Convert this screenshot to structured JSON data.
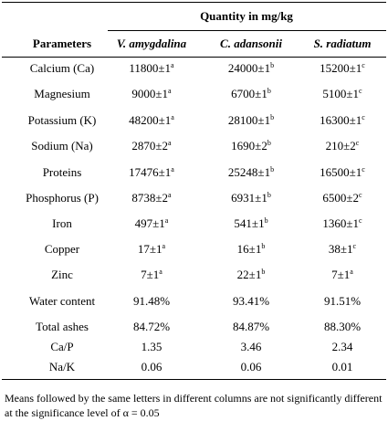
{
  "table": {
    "group_header": "Quantity in mg/kg",
    "columns": [
      "Parameters",
      "V. amygdalina",
      "C. adansonii",
      "S. radiatum"
    ],
    "rows": [
      {
        "parameter": "Calcium (Ca)",
        "cells": [
          {
            "value": "11800±1",
            "sup": "a"
          },
          {
            "value": "24000±1",
            "sup": "b"
          },
          {
            "value": "15200±1",
            "sup": "c"
          }
        ]
      },
      {
        "parameter": "Magnesium",
        "cells": [
          {
            "value": "9000±1",
            "sup": "a"
          },
          {
            "value": "6700±1",
            "sup": "b"
          },
          {
            "value": "5100±1",
            "sup": "c"
          }
        ]
      },
      {
        "parameter": "Potassium (K)",
        "cells": [
          {
            "value": "48200±1",
            "sup": "a"
          },
          {
            "value": "28100±1",
            "sup": "b"
          },
          {
            "value": "16300±1",
            "sup": "c"
          }
        ]
      },
      {
        "parameter": "Sodium (Na)",
        "cells": [
          {
            "value": "2870±2",
            "sup": "a"
          },
          {
            "value": "1690±2",
            "sup": "b"
          },
          {
            "value": "210±2",
            "sup": "c"
          }
        ]
      },
      {
        "parameter": "Proteins",
        "cells": [
          {
            "value": "17476±1",
            "sup": "a"
          },
          {
            "value": "25248±1",
            "sup": "b"
          },
          {
            "value": "16500±1",
            "sup": "c"
          }
        ]
      },
      {
        "parameter": "Phosphorus (P)",
        "cells": [
          {
            "value": "8738±2",
            "sup": "a"
          },
          {
            "value": "6931±1",
            "sup": "b"
          },
          {
            "value": "6500±2",
            "sup": "c"
          }
        ]
      },
      {
        "parameter": "Iron",
        "cells": [
          {
            "value": "497±1",
            "sup": "a"
          },
          {
            "value": "541±1",
            "sup": "b"
          },
          {
            "value": "1360±1",
            "sup": "c"
          }
        ]
      },
      {
        "parameter": "Copper",
        "cells": [
          {
            "value": "17±1",
            "sup": "a"
          },
          {
            "value": "16±1",
            "sup": "b"
          },
          {
            "value": "38±1",
            "sup": "c"
          }
        ]
      },
      {
        "parameter": "Zinc",
        "cells": [
          {
            "value": "7±1",
            "sup": "a"
          },
          {
            "value": "22±1",
            "sup": "b"
          },
          {
            "value": "7±1",
            "sup": "a"
          }
        ]
      },
      {
        "parameter": "Water content",
        "cells": [
          {
            "value": "91.48%"
          },
          {
            "value": "93.41%"
          },
          {
            "value": "91.51%"
          }
        ]
      },
      {
        "parameter": "Total ashes",
        "cells": [
          {
            "value": "84.72%"
          },
          {
            "value": "84.87%"
          },
          {
            "value": "88.30%"
          }
        ]
      },
      {
        "parameter": "Ca/P",
        "cells": [
          {
            "value": "1.35"
          },
          {
            "value": "3.46"
          },
          {
            "value": "2.34"
          }
        ]
      },
      {
        "parameter": "Na/K",
        "cells": [
          {
            "value": "0.06"
          },
          {
            "value": "0.06"
          },
          {
            "value": "0.01"
          }
        ]
      }
    ],
    "footnote": "Means followed by the same letters in different columns are not significantly different at the significance level of α = 0.05"
  }
}
